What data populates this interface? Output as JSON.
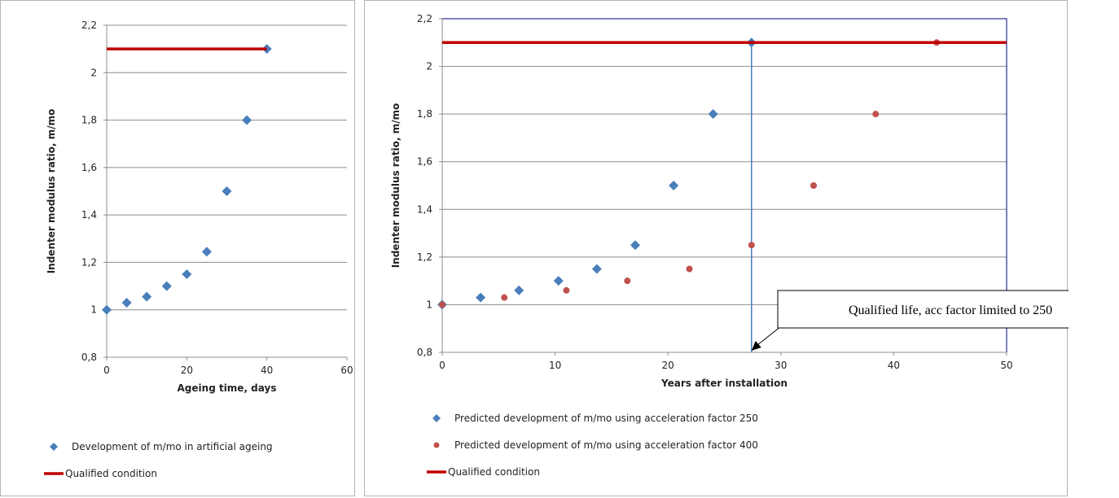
{
  "chart_data": [
    {
      "type": "scatter",
      "xlabel": "Ageing time, days",
      "ylabel": "Indenter modulus ratio, m/mo",
      "xlim": [
        0,
        60
      ],
      "ylim": [
        0.8,
        2.2
      ],
      "xticks": [
        0,
        20,
        40,
        60
      ],
      "yticks": [
        0.8,
        1,
        1.2,
        1.4,
        1.6,
        1.8,
        2,
        2.2
      ],
      "xtick_labels": [
        "0",
        "20",
        "40",
        "60"
      ],
      "ytick_labels": [
        "0,8",
        "1",
        "1,2",
        "1,4",
        "1,6",
        "1,8",
        "2",
        "2,2"
      ],
      "grid": "horizontal",
      "legend_position": "bottom",
      "series": [
        {
          "name": "Development of m/mo  in artificial ageing",
          "marker": "diamond",
          "color": "#4a7ebb",
          "x": [
            0,
            5,
            10,
            15,
            20,
            25,
            30,
            35,
            40
          ],
          "y": [
            1.0,
            1.03,
            1.055,
            1.1,
            1.15,
            1.245,
            1.5,
            1.8,
            2.1
          ]
        },
        {
          "name": "Qualified condition",
          "marker": "line",
          "color": "#c00000",
          "x": [
            0,
            40
          ],
          "y": [
            2.1,
            2.1
          ]
        }
      ]
    },
    {
      "type": "scatter",
      "xlabel": "Years after installation",
      "ylabel": "Indenter modulus ratio, m/mo",
      "xlim": [
        0,
        50
      ],
      "ylim": [
        0.8,
        2.2
      ],
      "xticks": [
        0,
        10,
        20,
        30,
        40,
        50
      ],
      "yticks": [
        0.8,
        1,
        1.2,
        1.4,
        1.6,
        1.8,
        2,
        2.2
      ],
      "xtick_labels": [
        "0",
        "10",
        "20",
        "30",
        "40",
        "50"
      ],
      "ytick_labels": [
        "0,8",
        "1",
        "1,2",
        "1,4",
        "1,6",
        "1,8",
        "2",
        "2,2"
      ],
      "grid": "horizontal",
      "legend_position": "bottom",
      "series": [
        {
          "name": "Predicted development of m/mo  using acceleration factor 250",
          "marker": "diamond",
          "color": "#4a7ebb",
          "x": [
            0,
            3.4,
            6.8,
            10.3,
            13.7,
            17.1,
            20.5,
            24.0,
            27.4
          ],
          "y": [
            1.0,
            1.03,
            1.06,
            1.1,
            1.15,
            1.25,
            1.5,
            1.8,
            2.1
          ]
        },
        {
          "name": "Predicted development of m/mo  using acceleration factor 400",
          "marker": "circle",
          "color": "#c0504d",
          "x": [
            0,
            5.5,
            11.0,
            16.4,
            21.9,
            27.4,
            32.9,
            38.4,
            43.8
          ],
          "y": [
            1.0,
            1.03,
            1.06,
            1.1,
            1.15,
            1.25,
            1.5,
            1.8,
            2.1
          ]
        },
        {
          "name": "Qualified condition",
          "marker": "line",
          "color": "#c00000",
          "x": [
            0,
            50
          ],
          "y": [
            2.1,
            2.1
          ]
        }
      ],
      "vertical_line": {
        "x": 27.4,
        "y_from": 0.8,
        "y_to": 2.1,
        "color": "#4a7ebb"
      },
      "annotation": {
        "text": "Qualified life, acc factor limited to 250",
        "x": 27.4,
        "y": 0.8
      }
    }
  ],
  "colors": {
    "grid": "#8c8c8c",
    "axis": "#000080",
    "qualified": "#c00000"
  }
}
